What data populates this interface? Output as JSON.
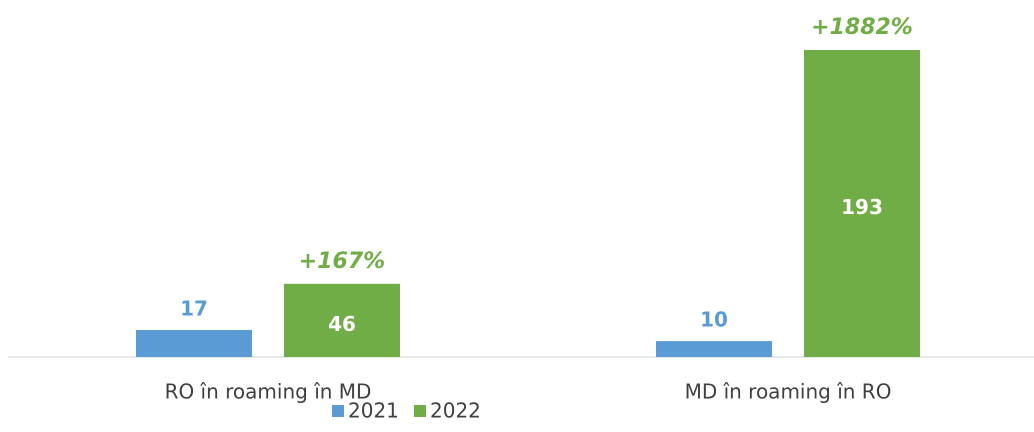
{
  "chart_data": {
    "type": "bar",
    "categories": [
      "RO în roaming în MD",
      "MD în roaming în RO"
    ],
    "series": [
      {
        "name": "2021",
        "color": "#5b9bd5",
        "values": [
          17,
          10
        ]
      },
      {
        "name": "2022",
        "color": "#70ad47",
        "values": [
          46,
          193
        ]
      }
    ],
    "annotations": [
      "+167%",
      "+1882%"
    ]
  }
}
